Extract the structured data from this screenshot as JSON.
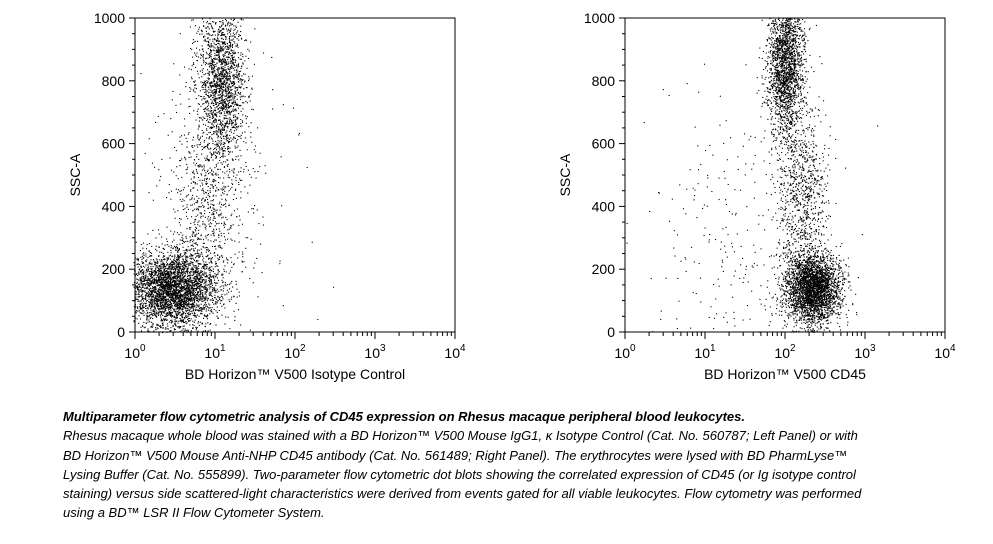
{
  "chart_data": [
    {
      "type": "scatter",
      "title": "",
      "xlabel": "BD Horizon™ V500 Isotype Control",
      "ylabel": "SSC-A",
      "xscale": "log",
      "xlim": [
        1,
        10000
      ],
      "ylim": [
        0,
        1000
      ],
      "x_ticks": [
        {
          "base": "10",
          "exp": "0"
        },
        {
          "base": "10",
          "exp": "1"
        },
        {
          "base": "10",
          "exp": "2"
        },
        {
          "base": "10",
          "exp": "3"
        },
        {
          "base": "10",
          "exp": "4"
        }
      ],
      "y_ticks": [
        0,
        200,
        400,
        600,
        800,
        1000
      ],
      "grid": false,
      "point_color": "#000000",
      "populations": [
        {
          "x_center": 3.0,
          "x_log_spread": 0.28,
          "y_center": 140,
          "y_spread": 60,
          "count": 3500
        },
        {
          "x_center": 12,
          "x_log_spread": 0.15,
          "y_center": 800,
          "y_spread": 130,
          "count": 1800
        },
        {
          "x_center": 8,
          "x_log_spread": 0.25,
          "y_center": 420,
          "y_spread": 150,
          "count": 700
        },
        {
          "x_center": 12,
          "x_log_spread": 0.5,
          "y_center": 500,
          "y_spread": 300,
          "count": 150
        }
      ]
    },
    {
      "type": "scatter",
      "title": "",
      "xlabel": "BD Horizon™ V500 CD45",
      "ylabel": "SSC-A",
      "xscale": "log",
      "xlim": [
        1,
        10000
      ],
      "ylim": [
        0,
        1000
      ],
      "x_ticks": [
        {
          "base": "10",
          "exp": "0"
        },
        {
          "base": "10",
          "exp": "1"
        },
        {
          "base": "10",
          "exp": "2"
        },
        {
          "base": "10",
          "exp": "3"
        },
        {
          "base": "10",
          "exp": "4"
        }
      ],
      "y_ticks": [
        0,
        200,
        400,
        600,
        800,
        1000
      ],
      "grid": false,
      "point_color": "#000000",
      "populations": [
        {
          "x_center": 220,
          "x_log_spread": 0.17,
          "y_center": 140,
          "y_spread": 55,
          "count": 3000
        },
        {
          "x_center": 100,
          "x_log_spread": 0.11,
          "y_center": 850,
          "y_spread": 110,
          "count": 2000
        },
        {
          "x_center": 160,
          "x_log_spread": 0.16,
          "y_center": 430,
          "y_spread": 150,
          "count": 900
        },
        {
          "x_center": 30,
          "x_log_spread": 0.6,
          "y_center": 300,
          "y_spread": 200,
          "count": 250
        }
      ]
    }
  ],
  "caption": {
    "title": "Multiparameter flow cytometric analysis of CD45 expression on Rhesus macaque peripheral blood leukocytes.",
    "body": "Rhesus macaque whole blood was stained with a BD Horizon™ V500 Mouse IgG1, κ Isotype Control (Cat. No. 560787; Left Panel) or with BD Horizon™ V500 Mouse Anti-NHP CD45 antibody (Cat. No. 561489; Right Panel). The erythrocytes were lysed with BD PharmLyse™ Lysing Buffer (Cat. No. 555899). Two-parameter flow cytometric dot blots showing the correlated expression of CD45 (or Ig isotype control staining) versus side scattered-light characteristics were derived from events gated for all viable leukocytes. Flow cytometry was performed using a BD™ LSR II Flow Cytometer System."
  }
}
